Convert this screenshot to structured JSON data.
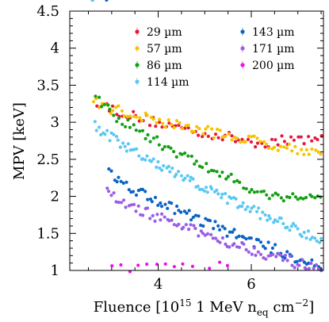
{
  "chart_data": {
    "type": "scatter",
    "title": "",
    "xlabel": "Fluence [10^15 1 MeV n_eq cm^-2]",
    "ylabel": "MPV [keV]",
    "xlim": [
      2.1,
      7.55
    ],
    "ylim": [
      1.0,
      4.5
    ],
    "x_ticks": [
      "4",
      "6"
    ],
    "y_ticks": [
      "1",
      "1.5",
      "2",
      "2.5",
      "3",
      "3.5",
      "4",
      "4.5"
    ],
    "legend_position": "top-center",
    "series": [
      {
        "name": "29 µm",
        "color": "#e8173a",
        "x_start": 2.6,
        "x_end": 7.5,
        "y_start": 3.35,
        "y_end": 2.8,
        "y_min_at": 6.2,
        "y_min": 2.72,
        "n": 70
      },
      {
        "name": "57 µm",
        "color": "#f5c400",
        "x_start": 2.6,
        "x_end": 7.5,
        "y_start": 3.28,
        "y_end": 2.58,
        "n": 80
      },
      {
        "name": "86 µm",
        "color": "#13a013",
        "x_start": 2.6,
        "x_end": 7.5,
        "y_start": 3.38,
        "y_end": 2.0,
        "y_flat_from": 6.4,
        "n": 80
      },
      {
        "name": "114 µm",
        "color": "#5bc8f2",
        "x_start": 2.6,
        "x_end": 7.5,
        "y_start": 3.0,
        "y_end": 1.42,
        "n": 110
      },
      {
        "name": "143 µm",
        "color": "#0b63c4",
        "x_start": 2.9,
        "x_end": 7.5,
        "y_start": 2.35,
        "y_end": 1.05,
        "n": 90
      },
      {
        "name": "171 µm",
        "color": "#9b5de5",
        "x_start": 2.9,
        "x_end": 7.5,
        "y_start": 2.05,
        "y_end": 1.0,
        "n": 90
      },
      {
        "name": "200 µm",
        "color": "#ee10e8",
        "x_start": 3.0,
        "x_end": 5.5,
        "y_start": 1.0,
        "y_end": 1.05,
        "n": 14
      }
    ]
  }
}
